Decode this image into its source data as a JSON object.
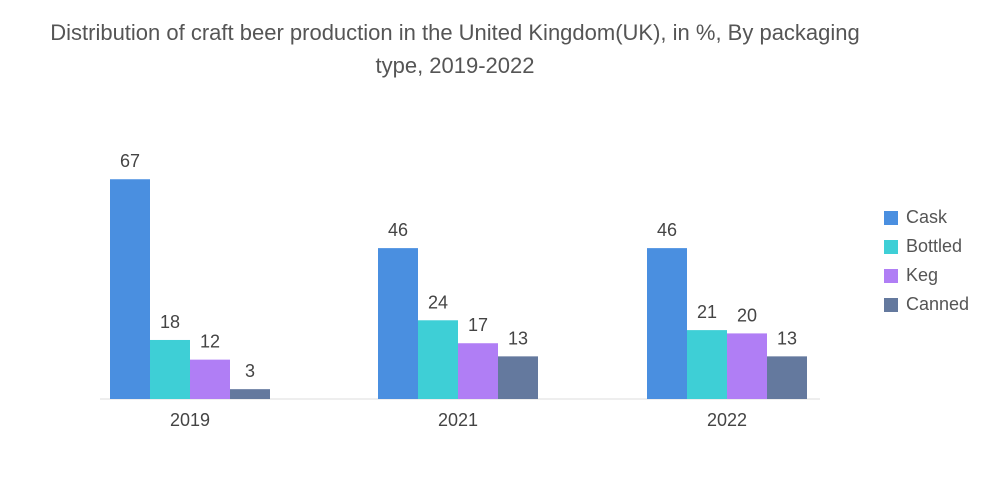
{
  "chart_data": {
    "type": "bar",
    "title": "Distribution of craft beer production in the United Kingdom(UK), in %, By packaging type, 2019-2022",
    "categories": [
      "2019",
      "2021",
      "2022"
    ],
    "series": [
      {
        "name": "Cask",
        "values": [
          67,
          46,
          46
        ],
        "color": "#4a8fe0"
      },
      {
        "name": "Bottled",
        "values": [
          18,
          24,
          21
        ],
        "color": "#3ecfd6"
      },
      {
        "name": "Keg",
        "values": [
          12,
          17,
          20
        ],
        "color": "#b07ef5"
      },
      {
        "name": "Canned",
        "values": [
          3,
          13,
          13
        ],
        "color": "#64799e"
      }
    ],
    "xlabel": "",
    "ylabel": "",
    "ylim": [
      0,
      67
    ],
    "grid": false,
    "legend": "right",
    "label_color": "#444444",
    "axis_color": "#dddddd"
  }
}
